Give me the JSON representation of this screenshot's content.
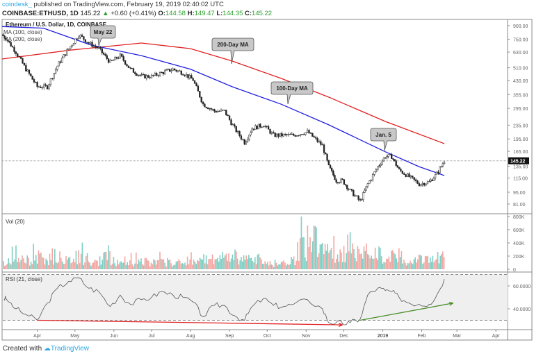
{
  "header": {
    "brand": "coindesk_",
    "published": "published on TradingView.com, February 19, 2019 02:40:02 UTC",
    "symbol": "COINBASE:ETHUSD, 1D",
    "last": "145.22",
    "change": "+0.60 (+0.41%)",
    "o_label": "O:",
    "o": "144.58",
    "h_label": "H:",
    "h": "149.47",
    "l_label": "L:",
    "l": "144.35",
    "c_label": "C:",
    "c": "145.22"
  },
  "footer": {
    "created": "Created with",
    "brand": "TradingView"
  },
  "colors": {
    "up": "#2ca02c",
    "ma100": "#1f1fe0",
    "ma200": "#e02020",
    "vol_up": "#7ecfc4",
    "vol_down": "#f4a7a3",
    "rsi_trend_down": "#e02020",
    "rsi_trend_up": "#4a8f2a"
  },
  "chart_data": [
    {
      "type": "candlestick",
      "title": "Ethereum / U.S. Dollar, 1D, COINBASE",
      "scale": "log",
      "legend": [
        "MA (100, close)",
        "MA (200, close)"
      ],
      "yticks": [
        900,
        750,
        630,
        510,
        430,
        355,
        295,
        235,
        195,
        165,
        135,
        115,
        95,
        81
      ],
      "last_price_label": "145.22",
      "last_price": 145.22,
      "xticks": [
        "Apr",
        "May",
        "Jun",
        "Jul",
        "Aug",
        "Sep",
        "Oct",
        "Nov",
        "Dec",
        "2019",
        "Feb",
        "Mar",
        "Apr"
      ],
      "close": [
        [
          "2018-03-07",
          760
        ],
        [
          "2018-03-15",
          630
        ],
        [
          "2018-03-23",
          500
        ],
        [
          "2018-04-01",
          395
        ],
        [
          "2018-04-09",
          395
        ],
        [
          "2018-04-17",
          523
        ],
        [
          "2018-04-26",
          660
        ],
        [
          "2018-05-04",
          797
        ],
        [
          "2018-05-12",
          712
        ],
        [
          "2018-05-20",
          660
        ],
        [
          "2018-05-29",
          548
        ],
        [
          "2018-06-06",
          600
        ],
        [
          "2018-06-14",
          500
        ],
        [
          "2018-06-23",
          454
        ],
        [
          "2018-07-01",
          454
        ],
        [
          "2018-07-09",
          476
        ],
        [
          "2018-07-18",
          500
        ],
        [
          "2018-07-26",
          476
        ],
        [
          "2018-08-03",
          433
        ],
        [
          "2018-08-11",
          312
        ],
        [
          "2018-08-20",
          284
        ],
        [
          "2018-08-28",
          284
        ],
        [
          "2018-09-05",
          225
        ],
        [
          "2018-09-13",
          186
        ],
        [
          "2018-09-19",
          225
        ],
        [
          "2018-09-28",
          236
        ],
        [
          "2018-10-06",
          205
        ],
        [
          "2018-10-14",
          205
        ],
        [
          "2018-10-22",
          205
        ],
        [
          "2018-11-02",
          215
        ],
        [
          "2018-11-14",
          178
        ],
        [
          "2018-11-19",
          134
        ],
        [
          "2018-11-25",
          111
        ],
        [
          "2018-11-30",
          111
        ],
        [
          "2018-12-06",
          97
        ],
        [
          "2018-12-14",
          84
        ],
        [
          "2018-12-20",
          106
        ],
        [
          "2018-12-28",
          134
        ],
        [
          "2019-01-03",
          154
        ],
        [
          "2019-01-08",
          154
        ],
        [
          "2019-01-14",
          128
        ],
        [
          "2019-01-22",
          117
        ],
        [
          "2019-01-30",
          106
        ],
        [
          "2019-02-07",
          109
        ],
        [
          "2019-02-13",
          122
        ],
        [
          "2019-02-19",
          145.22
        ]
      ],
      "ma100": [
        [
          "2018-03-04",
          890
        ],
        [
          "2018-04-06",
          870
        ],
        [
          "2018-05-14",
          692
        ],
        [
          "2018-06-23",
          600
        ],
        [
          "2018-08-01",
          500
        ],
        [
          "2018-09-03",
          395
        ],
        [
          "2018-10-12",
          312
        ],
        [
          "2018-11-19",
          236
        ],
        [
          "2019-01-03",
          164
        ],
        [
          "2019-01-30",
          134
        ],
        [
          "2019-02-19",
          119
        ]
      ],
      "ma200": [
        [
          "2018-03-04",
          574
        ],
        [
          "2018-04-28",
          648
        ],
        [
          "2018-06-23",
          712
        ],
        [
          "2018-08-01",
          660
        ],
        [
          "2018-09-03",
          559
        ],
        [
          "2018-10-12",
          442
        ],
        [
          "2018-11-19",
          343
        ],
        [
          "2019-01-03",
          247
        ],
        [
          "2019-02-19",
          183
        ]
      ],
      "annotations": [
        {
          "text": "May 22",
          "date": "2018-05-22"
        },
        {
          "text": "200-Day MA"
        },
        {
          "text": "100-Day MA"
        },
        {
          "text": "Jan. 5",
          "date": "2019-01-05"
        }
      ]
    },
    {
      "type": "bar",
      "title": "Vol (20)",
      "yticks": [
        "800K",
        "600K",
        "400K",
        "200K",
        "0"
      ],
      "ylim": [
        0,
        800000
      ],
      "values_k": [
        150,
        180,
        200,
        250,
        220,
        280,
        200,
        260,
        220,
        160,
        240,
        200,
        180,
        150,
        160,
        140,
        150,
        160,
        180,
        260,
        220,
        200,
        250,
        300,
        230,
        200,
        160,
        130,
        140,
        170,
        450,
        600,
        400,
        350,
        380,
        500,
        360,
        340,
        320,
        280,
        240,
        220,
        200,
        240,
        260,
        300
      ]
    },
    {
      "type": "line",
      "title": "RSI (21, close)",
      "yticks": [
        "60.0000",
        "40.0000"
      ],
      "ylim": [
        20,
        75
      ],
      "bands": [
        30,
        70
      ],
      "values": [
        49,
        40,
        35,
        30,
        45,
        58,
        64,
        67,
        58,
        55,
        42,
        52,
        44,
        48,
        50,
        55,
        52,
        50,
        46,
        33,
        43,
        43,
        34,
        30,
        42,
        49,
        43,
        42,
        44,
        48,
        40,
        28,
        28,
        27,
        28,
        31,
        52,
        58,
        56,
        55,
        50,
        45,
        44,
        44,
        52,
        66
      ],
      "trendlines": [
        {
          "from": [
            "2018-04-01",
            30
          ],
          "to": [
            "2018-11-30",
            26
          ],
          "color": "red"
        },
        {
          "from": [
            "2018-12-14",
            30
          ],
          "to": [
            "2019-02-26",
            45
          ],
          "color": "green"
        }
      ]
    }
  ]
}
